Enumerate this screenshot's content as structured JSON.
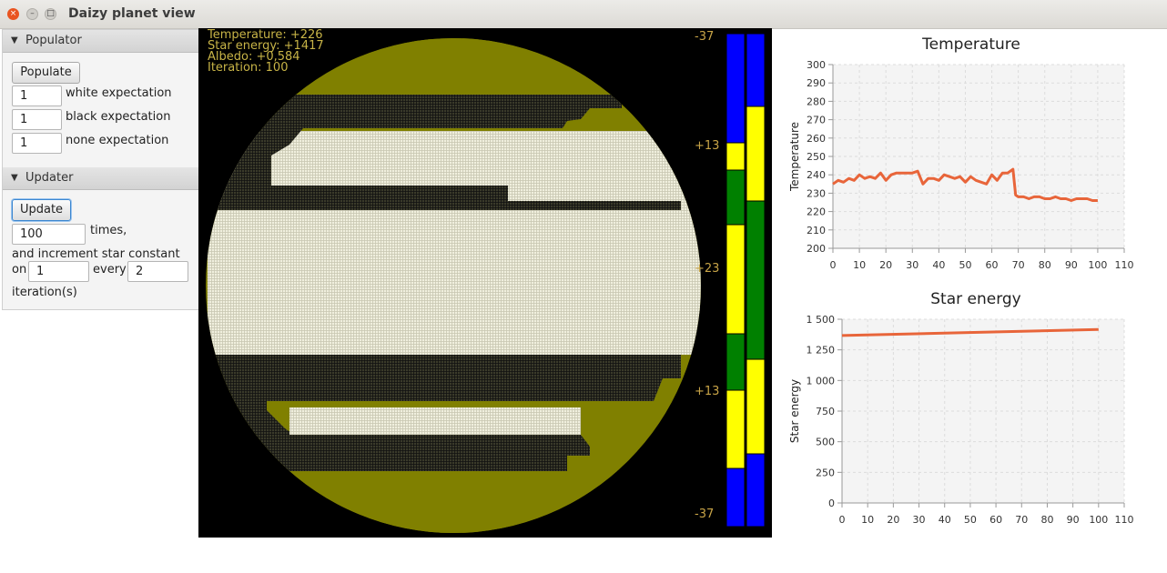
{
  "window": {
    "title": "Daizy planet view",
    "close_glyph": "×",
    "min_glyph": "–",
    "max_glyph": "□"
  },
  "populator": {
    "header": "Populator",
    "populate_button": "Populate",
    "white_value": "1",
    "white_label": "white expectation",
    "black_value": "1",
    "black_label": "black expectation",
    "none_value": "1",
    "none_label": "none expectation"
  },
  "updater": {
    "header": "Updater",
    "update_button": "Update",
    "times_value": "100",
    "times_label": "times,",
    "increment_label": "and increment star constant",
    "on_label": "on",
    "on_value": "1",
    "every_label": "every",
    "every_value": "2",
    "iterations_label": "iteration(s)"
  },
  "planet": {
    "temperature": "Temperature: +226",
    "star_energy": "Star energy: +1417",
    "albedo": "Albedo: +0,584",
    "iteration": "Iteration: 100",
    "colors": {
      "background": "#000000",
      "planet_rim": "#808000",
      "white_daisy": "#ecebd9",
      "black_daisy": "#2a2a1e"
    },
    "temperature_scale": [
      "-37",
      "+13",
      "+23",
      "+13",
      "-37"
    ],
    "climate_bar_left": [
      "blue",
      "yellow",
      "green",
      "yellow",
      "green",
      "yellow",
      "blue"
    ],
    "climate_bar_right": [
      "blue",
      "yellow",
      "green",
      "yellow",
      "blue"
    ]
  },
  "chart_data": [
    {
      "type": "line",
      "title": "Temperature",
      "ylabel": "Temperature",
      "xlabel": "",
      "xlim": [
        0,
        110
      ],
      "ylim": [
        200,
        300
      ],
      "x_ticks": [
        "0",
        "10",
        "20",
        "30",
        "40",
        "50",
        "60",
        "70",
        "80",
        "90",
        "100",
        "110"
      ],
      "y_ticks": [
        "200",
        "210",
        "220",
        "230",
        "240",
        "250",
        "260",
        "270",
        "280",
        "290",
        "300"
      ],
      "grid": true,
      "color": "#e8653a",
      "series": [
        {
          "x": [
            0,
            2,
            4,
            6,
            8,
            10,
            12,
            14,
            16,
            18,
            20,
            22,
            24,
            26,
            28,
            30,
            32,
            34,
            36,
            38,
            40,
            42,
            44,
            46,
            48,
            50,
            52,
            54,
            56,
            58,
            60,
            62,
            64,
            66,
            68,
            69,
            70,
            72,
            74,
            76,
            78,
            80,
            82,
            84,
            86,
            88,
            90,
            92,
            94,
            96,
            98,
            100
          ],
          "y": [
            235,
            237,
            236,
            238,
            237,
            240,
            238,
            239,
            238,
            241,
            237,
            240,
            241,
            241,
            241,
            241,
            242,
            235,
            238,
            238,
            237,
            240,
            239,
            238,
            239,
            236,
            239,
            237,
            236,
            235,
            240,
            237,
            241,
            241,
            243,
            229,
            228,
            228,
            227,
            228,
            228,
            227,
            227,
            228,
            227,
            227,
            226,
            227,
            227,
            227,
            226,
            226
          ]
        }
      ]
    },
    {
      "type": "line",
      "title": "Star energy",
      "ylabel": "Star energy",
      "xlabel": "",
      "xlim": [
        0,
        110
      ],
      "ylim": [
        0,
        1500
      ],
      "x_ticks": [
        "0",
        "10",
        "20",
        "30",
        "40",
        "50",
        "60",
        "70",
        "80",
        "90",
        "100",
        "110"
      ],
      "y_ticks": [
        "0",
        "250",
        "500",
        "750",
        "1 000",
        "1 250",
        "1 500"
      ],
      "grid": true,
      "color": "#e8653a",
      "series": [
        {
          "x": [
            0,
            100
          ],
          "y": [
            1367,
            1417
          ]
        }
      ]
    }
  ]
}
